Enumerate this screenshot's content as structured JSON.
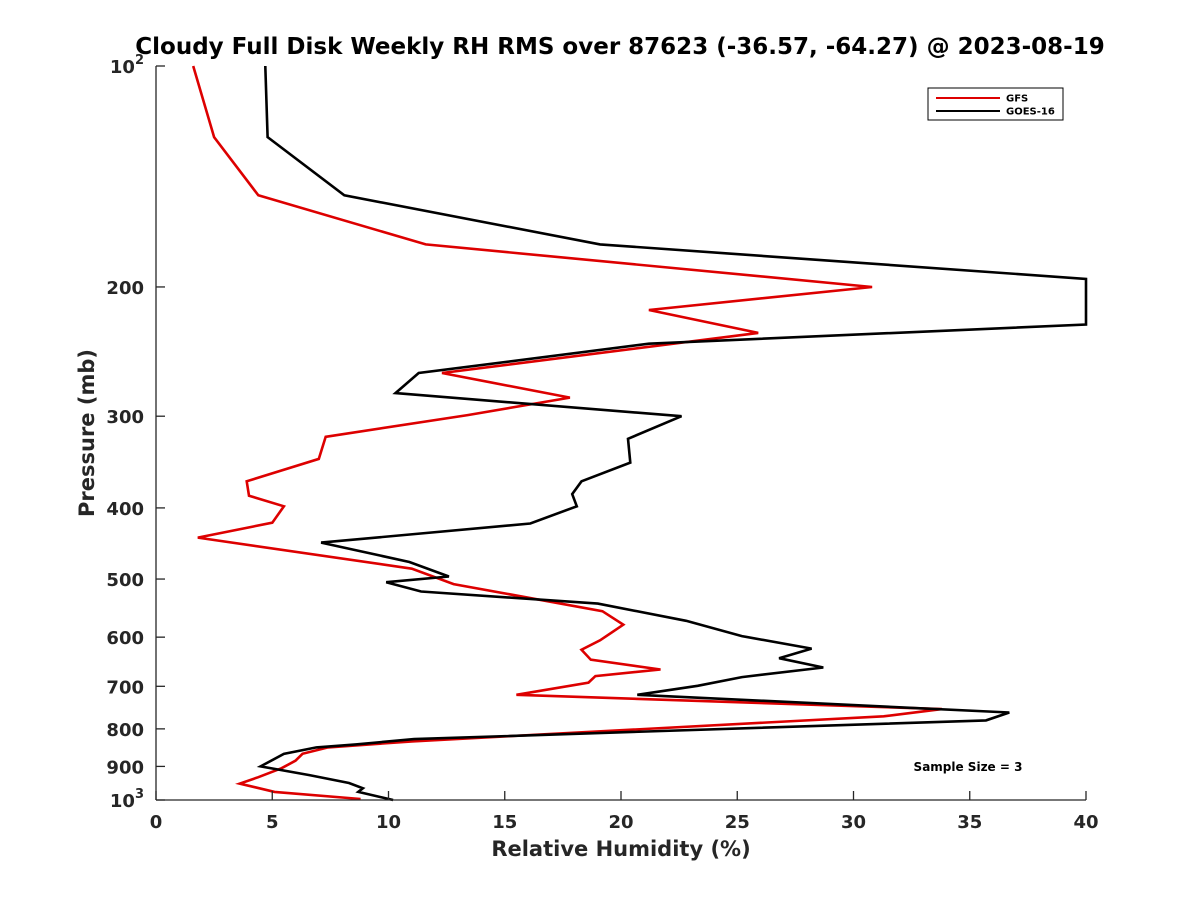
{
  "chart_data": {
    "type": "line",
    "title": "Cloudy Full Disk Weekly RH RMS over 87623 (-36.57, -64.27) @ 2023-08-19",
    "xlabel": "Relative Humidity (%)",
    "ylabel": "Pressure (mb)",
    "xlim": [
      0,
      40
    ],
    "ylim": [
      100,
      1000
    ],
    "y_scale": "log",
    "y_reversed": true,
    "grid": false,
    "legend_position": "top-right",
    "x_ticks": [
      "0",
      "5",
      "10",
      "15",
      "20",
      "25",
      "30",
      "35",
      "40"
    ],
    "y_ticks": [
      {
        "value": 100,
        "base": "10",
        "exp": "2"
      },
      {
        "value": 200,
        "label": "200"
      },
      {
        "value": 300,
        "label": "300"
      },
      {
        "value": 400,
        "label": "400"
      },
      {
        "value": 500,
        "label": "500"
      },
      {
        "value": 600,
        "label": "600"
      },
      {
        "value": 700,
        "label": "700"
      },
      {
        "value": 800,
        "label": "800"
      },
      {
        "value": 900,
        "label": "900"
      },
      {
        "value": 1000,
        "base": "10",
        "exp": "3"
      }
    ],
    "series": [
      {
        "name": "GFS",
        "color": "#dd0000",
        "points": [
          [
            1.6,
            100
          ],
          [
            2.5,
            125
          ],
          [
            4.4,
            150
          ],
          [
            11.6,
            175
          ],
          [
            30.8,
            200
          ],
          [
            21.2,
            215
          ],
          [
            25.9,
            231
          ],
          [
            12.3,
            262
          ],
          [
            17.8,
            283
          ],
          [
            13.4,
            299
          ],
          [
            7.3,
            320
          ],
          [
            7.0,
            343
          ],
          [
            3.9,
            368
          ],
          [
            4.0,
            385
          ],
          [
            5.5,
            398
          ],
          [
            5.0,
            419
          ],
          [
            1.8,
            439
          ],
          [
            11.0,
            484
          ],
          [
            12.8,
            508
          ],
          [
            19.2,
            553
          ],
          [
            20.1,
            577
          ],
          [
            19.1,
            606
          ],
          [
            18.3,
            624
          ],
          [
            18.7,
            644
          ],
          [
            21.7,
            664
          ],
          [
            18.9,
            678
          ],
          [
            18.6,
            692
          ],
          [
            15.5,
            719
          ],
          [
            33.8,
            752
          ],
          [
            31.3,
            769
          ],
          [
            16.3,
            815
          ],
          [
            11.0,
            832
          ],
          [
            7.4,
            848
          ],
          [
            6.3,
            865
          ],
          [
            6.0,
            884
          ],
          [
            5.4,
            905
          ],
          [
            4.4,
            931
          ],
          [
            3.6,
            950
          ],
          [
            5.1,
            975
          ],
          [
            8.8,
            997
          ]
        ]
      },
      {
        "name": "GOES-16",
        "color": "#000000",
        "points": [
          [
            4.7,
            100
          ],
          [
            4.8,
            125
          ],
          [
            8.1,
            150
          ],
          [
            19.1,
            175
          ],
          [
            40.0,
            195
          ],
          [
            40.0,
            225
          ],
          [
            21.2,
            239
          ],
          [
            11.3,
            262
          ],
          [
            10.3,
            279
          ],
          [
            22.6,
            300
          ],
          [
            20.3,
            322
          ],
          [
            20.4,
            347
          ],
          [
            18.3,
            368
          ],
          [
            17.9,
            383
          ],
          [
            18.1,
            398
          ],
          [
            16.1,
            420
          ],
          [
            7.1,
            446
          ],
          [
            10.9,
            474
          ],
          [
            12.6,
            496
          ],
          [
            9.9,
            505
          ],
          [
            11.4,
            520
          ],
          [
            19.0,
            540
          ],
          [
            22.8,
            570
          ],
          [
            25.2,
            598
          ],
          [
            28.2,
            622
          ],
          [
            26.8,
            641
          ],
          [
            28.7,
            660
          ],
          [
            25.2,
            680
          ],
          [
            23.3,
            699
          ],
          [
            20.7,
            719
          ],
          [
            36.7,
            760
          ],
          [
            35.7,
            779
          ],
          [
            11.1,
            826
          ],
          [
            8.6,
            840
          ],
          [
            6.9,
            848
          ],
          [
            5.5,
            865
          ],
          [
            4.5,
            900
          ],
          [
            6.6,
            925
          ],
          [
            8.3,
            948
          ],
          [
            8.9,
            964
          ],
          [
            8.7,
            975
          ],
          [
            10.2,
            1000
          ]
        ]
      }
    ],
    "annotations": [
      "Sample Size = 3"
    ]
  }
}
